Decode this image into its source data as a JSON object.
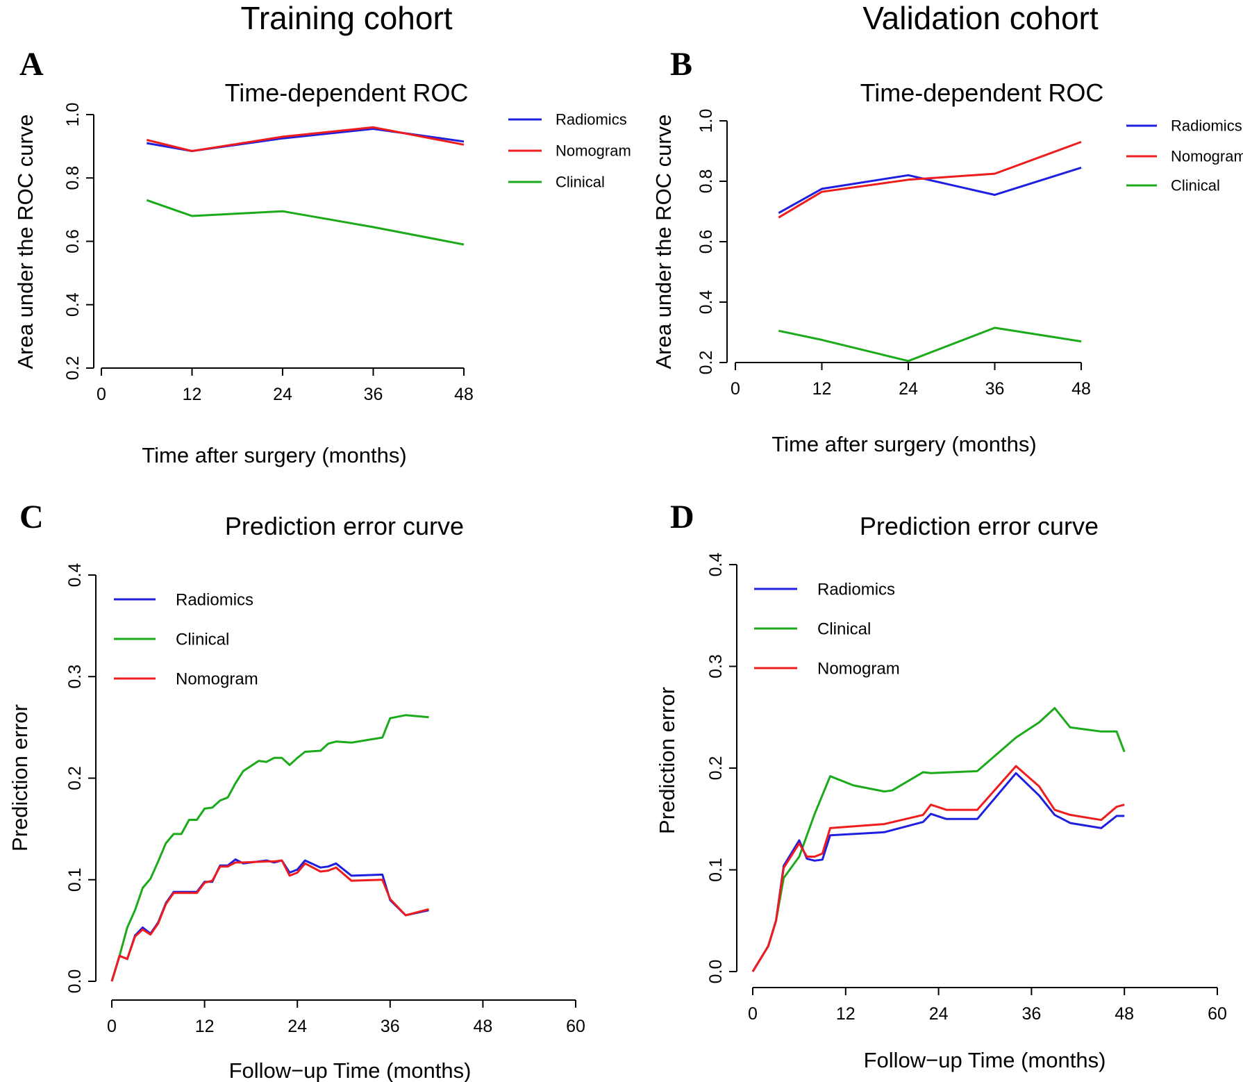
{
  "headers": {
    "training": "Training cohort",
    "validation": "Validation cohort"
  },
  "colors": {
    "Radiomics": "#1f1fe0",
    "Nomogram": "#ee1c1c",
    "Clinical": "#1aaa1a"
  },
  "chart_data": [
    {
      "panel": "A",
      "type": "line",
      "title": "Time-dependent ROC",
      "xlabel": "Time after surgery (months)",
      "ylabel": "Area under the ROC curve",
      "xlim": [
        0,
        48
      ],
      "ylim": [
        0.2,
        1.0
      ],
      "xticks": [
        "0",
        "12",
        "24",
        "36",
        "48"
      ],
      "yticks": [
        "0.2",
        "0.4",
        "0.6",
        "0.8",
        "1.0"
      ],
      "legend": [
        "Radiomics",
        "Nomogram",
        "Clinical"
      ],
      "legend_position": "right",
      "series": [
        {
          "name": "Radiomics",
          "x": [
            6,
            12,
            24,
            36,
            48
          ],
          "y": [
            0.91,
            0.885,
            0.925,
            0.955,
            0.915
          ]
        },
        {
          "name": "Nomogram",
          "x": [
            6,
            12,
            24,
            36,
            48
          ],
          "y": [
            0.92,
            0.885,
            0.93,
            0.96,
            0.905
          ]
        },
        {
          "name": "Clinical",
          "x": [
            6,
            12,
            24,
            36,
            48
          ],
          "y": [
            0.73,
            0.68,
            0.695,
            0.645,
            0.59
          ]
        }
      ]
    },
    {
      "panel": "B",
      "type": "line",
      "title": "Time-dependent ROC",
      "xlabel": "Time after surgery (months)",
      "ylabel": "Area under the ROC curve",
      "xlim": [
        0,
        48
      ],
      "ylim": [
        0.2,
        1.0
      ],
      "xticks": [
        "0",
        "12",
        "24",
        "36",
        "48"
      ],
      "yticks": [
        "0.2",
        "0.4",
        "0.6",
        "0.8",
        "1.0"
      ],
      "legend": [
        "Radiomics",
        "Nomogram",
        "Clinical"
      ],
      "legend_position": "right",
      "series": [
        {
          "name": "Radiomics",
          "x": [
            6,
            12,
            24,
            36,
            48
          ],
          "y": [
            0.695,
            0.775,
            0.82,
            0.755,
            0.845
          ]
        },
        {
          "name": "Nomogram",
          "x": [
            6,
            12,
            24,
            36,
            48
          ],
          "y": [
            0.68,
            0.765,
            0.805,
            0.825,
            0.93
          ]
        },
        {
          "name": "Clinical",
          "x": [
            6,
            12,
            24,
            36,
            48
          ],
          "y": [
            0.305,
            0.275,
            0.205,
            0.315,
            0.27
          ]
        }
      ]
    },
    {
      "panel": "C",
      "type": "line",
      "title": "Prediction error curve",
      "xlabel": "Follow−up Time (months)",
      "ylabel": "Prediction error",
      "xlim": [
        0,
        60
      ],
      "ylim": [
        0,
        0.4
      ],
      "xticks": [
        "0",
        "12",
        "24",
        "36",
        "48",
        "60"
      ],
      "yticks": [
        "0.0",
        "0.1",
        "0.2",
        "0.3",
        "0.4"
      ],
      "legend": [
        "Radiomics",
        "Clinical",
        "Nomogram"
      ],
      "legend_position": "top-left",
      "series": [
        {
          "name": "Clinical",
          "x": [
            0,
            1,
            2,
            3,
            4,
            5,
            6,
            7,
            8,
            9,
            10,
            11,
            12,
            13,
            14,
            15,
            16,
            17,
            18,
            19,
            20,
            21,
            22,
            23,
            24,
            25,
            27,
            28,
            29,
            31,
            35,
            36,
            38,
            41
          ],
          "y": [
            0,
            0.025,
            0.053,
            0.07,
            0.092,
            0.101,
            0.118,
            0.136,
            0.145,
            0.145,
            0.159,
            0.159,
            0.17,
            0.171,
            0.178,
            0.181,
            0.195,
            0.207,
            0.212,
            0.217,
            0.216,
            0.22,
            0.22,
            0.213,
            0.22,
            0.226,
            0.227,
            0.234,
            0.236,
            0.235,
            0.24,
            0.259,
            0.262,
            0.26
          ]
        },
        {
          "name": "Radiomics",
          "x": [
            0,
            1,
            2,
            3,
            4,
            5,
            6,
            7,
            8,
            9,
            11,
            12,
            13,
            14,
            15,
            16,
            17,
            20,
            21,
            22,
            23,
            24,
            25,
            27,
            28,
            29,
            31,
            35,
            36,
            38,
            41
          ],
          "y": [
            0,
            0.025,
            0.022,
            0.045,
            0.053,
            0.047,
            0.058,
            0.077,
            0.088,
            0.088,
            0.088,
            0.098,
            0.098,
            0.114,
            0.114,
            0.12,
            0.116,
            0.119,
            0.117,
            0.119,
            0.107,
            0.11,
            0.119,
            0.112,
            0.113,
            0.116,
            0.104,
            0.105,
            0.08,
            0.065,
            0.07
          ]
        },
        {
          "name": "Nomogram",
          "x": [
            0,
            1,
            2,
            3,
            4,
            5,
            6,
            7,
            8,
            9,
            11,
            12,
            13,
            14,
            15,
            16,
            17,
            20,
            21,
            22,
            23,
            24,
            25,
            27,
            28,
            29,
            31,
            35,
            36,
            38,
            41
          ],
          "y": [
            0,
            0.025,
            0.022,
            0.044,
            0.051,
            0.046,
            0.057,
            0.076,
            0.087,
            0.087,
            0.087,
            0.097,
            0.099,
            0.113,
            0.113,
            0.117,
            0.117,
            0.118,
            0.118,
            0.119,
            0.104,
            0.107,
            0.116,
            0.108,
            0.109,
            0.112,
            0.099,
            0.1,
            0.081,
            0.065,
            0.071
          ]
        }
      ]
    },
    {
      "panel": "D",
      "type": "line",
      "title": "Prediction error curve",
      "xlabel": "Follow−up Time (months)",
      "ylabel": "Prediction error",
      "xlim": [
        0,
        60
      ],
      "ylim": [
        0,
        0.4
      ],
      "xticks": [
        "0",
        "12",
        "24",
        "36",
        "48",
        "60"
      ],
      "yticks": [
        "0.0",
        "0.1",
        "0.2",
        "0.3",
        "0.4"
      ],
      "legend": [
        "Radiomics",
        "Clinical",
        "Nomogram"
      ],
      "legend_position": "top-left",
      "series": [
        {
          "name": "Clinical",
          "x": [
            0,
            2,
            3,
            4,
            6,
            8,
            10,
            13,
            17,
            18,
            22,
            23,
            29,
            34,
            37,
            39,
            41,
            45,
            47,
            48
          ],
          "y": [
            0,
            0.025,
            0.05,
            0.092,
            0.113,
            0.155,
            0.192,
            0.183,
            0.177,
            0.178,
            0.196,
            0.195,
            0.197,
            0.23,
            0.245,
            0.259,
            0.24,
            0.236,
            0.236,
            0.216
          ]
        },
        {
          "name": "Radiomics",
          "x": [
            0,
            2,
            3,
            4,
            6,
            7,
            8,
            9,
            10,
            17,
            22,
            23,
            25,
            29,
            34,
            37,
            39,
            41,
            45,
            47,
            48
          ],
          "y": [
            0,
            0.025,
            0.05,
            0.104,
            0.129,
            0.111,
            0.109,
            0.11,
            0.134,
            0.137,
            0.147,
            0.155,
            0.15,
            0.15,
            0.195,
            0.173,
            0.154,
            0.146,
            0.141,
            0.153,
            0.153
          ]
        },
        {
          "name": "Nomogram",
          "x": [
            0,
            2,
            3,
            4,
            6,
            7,
            8,
            9,
            10,
            17,
            22,
            23,
            25,
            29,
            34,
            37,
            39,
            41,
            45,
            47,
            48
          ],
          "y": [
            0,
            0.025,
            0.05,
            0.102,
            0.126,
            0.113,
            0.113,
            0.116,
            0.141,
            0.145,
            0.154,
            0.164,
            0.159,
            0.159,
            0.202,
            0.182,
            0.159,
            0.154,
            0.149,
            0.162,
            0.164
          ]
        }
      ]
    }
  ]
}
